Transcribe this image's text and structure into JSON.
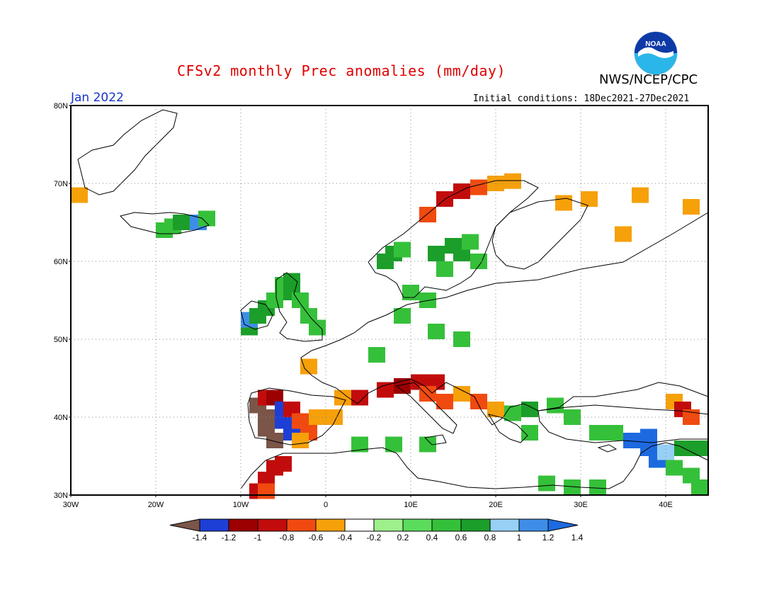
{
  "header": {
    "title": "CFSv2 monthly Prec anomalies (mm/day)",
    "agency": "NWS/NCEP/CPC",
    "logo_text": "NOAA",
    "month": "Jan 2022",
    "initial_conditions": "Initial conditions: 18Dec2021-27Dec2021"
  },
  "map": {
    "lon_range": [
      -30,
      45
    ],
    "lat_range": [
      30,
      80
    ],
    "lat_labels": [
      "80N",
      "70N",
      "60N",
      "50N",
      "40N",
      "30N"
    ],
    "lon_labels": [
      "30W",
      "20W",
      "10W",
      "0",
      "10E",
      "20E",
      "30E",
      "40E"
    ]
  },
  "colorbar": {
    "labels": [
      "-1.4",
      "-1.2",
      "-1",
      "-0.8",
      "-0.6",
      "-0.4",
      "-0.2",
      "0.2",
      "0.4",
      "0.6",
      "0.8",
      "1",
      "1.2",
      "1.4"
    ],
    "colors": [
      "#7a5548",
      "#1d3fd6",
      "#9c0000",
      "#c20c0c",
      "#f04a10",
      "#f6a00a",
      "#ffffff",
      "#9ef08c",
      "#5bdc5c",
      "#35c03a",
      "#1c9e2a",
      "#97d0f5",
      "#3e8ee8",
      "#1d6ae0"
    ]
  },
  "anomaly_cells": [
    {
      "lon": -30,
      "lat": 68.5,
      "v": -0.5
    },
    {
      "lon": -20,
      "lat": 64,
      "v": 0.5
    },
    {
      "lon": -19,
      "lat": 64.5,
      "v": 0.5
    },
    {
      "lon": -18,
      "lat": 65,
      "v": 0.7
    },
    {
      "lon": -17,
      "lat": 65,
      "v": 0.7
    },
    {
      "lon": -16,
      "lat": 65,
      "v": 1.1
    },
    {
      "lon": -15,
      "lat": 65.5,
      "v": 0.5
    },
    {
      "lon": -10,
      "lat": 51.5,
      "v": 0.7
    },
    {
      "lon": -10,
      "lat": 52.5,
      "v": 1.1
    },
    {
      "lon": -9,
      "lat": 53,
      "v": 0.7
    },
    {
      "lon": -8,
      "lat": 54,
      "v": 0.7
    },
    {
      "lon": -7,
      "lat": 55,
      "v": 0.5
    },
    {
      "lon": -6,
      "lat": 57,
      "v": 0.5
    },
    {
      "lon": -5,
      "lat": 57.5,
      "v": 0.7
    },
    {
      "lon": -5,
      "lat": 56,
      "v": 0.7
    },
    {
      "lon": -4,
      "lat": 55,
      "v": 0.5
    },
    {
      "lon": -3,
      "lat": 53,
      "v": 0.5
    },
    {
      "lon": -2,
      "lat": 51.5,
      "v": 0.5
    },
    {
      "lon": 6,
      "lat": 60,
      "v": 0.7
    },
    {
      "lon": 7,
      "lat": 61,
      "v": 0.7
    },
    {
      "lon": 8,
      "lat": 61.5,
      "v": 0.5
    },
    {
      "lon": 12,
      "lat": 61,
      "v": 0.7
    },
    {
      "lon": 14,
      "lat": 62,
      "v": 0.7
    },
    {
      "lon": 15,
      "lat": 61,
      "v": 0.7
    },
    {
      "lon": 16,
      "lat": 62.5,
      "v": 0.5
    },
    {
      "lon": 17,
      "lat": 60,
      "v": 0.5
    },
    {
      "lon": 13,
      "lat": 59,
      "v": 0.5
    },
    {
      "lon": 9,
      "lat": 56,
      "v": 0.5
    },
    {
      "lon": 11,
      "lat": 55,
      "v": 0.5
    },
    {
      "lon": 8,
      "lat": 53,
      "v": 0.5
    },
    {
      "lon": 12,
      "lat": 51,
      "v": 0.5
    },
    {
      "lon": 15,
      "lat": 50,
      "v": 0.5
    },
    {
      "lon": 5,
      "lat": 48,
      "v": 0.5
    },
    {
      "lon": 13,
      "lat": 68,
      "v": -0.8
    },
    {
      "lon": 15,
      "lat": 69,
      "v": -0.9
    },
    {
      "lon": 17,
      "lat": 69.5,
      "v": -0.6
    },
    {
      "lon": 19,
      "lat": 70,
      "v": -0.5
    },
    {
      "lon": 21,
      "lat": 70.3,
      "v": -0.5
    },
    {
      "lon": 11,
      "lat": 66,
      "v": -0.6
    },
    {
      "lon": 27,
      "lat": 67.5,
      "v": -0.5
    },
    {
      "lon": 30,
      "lat": 68,
      "v": -0.5
    },
    {
      "lon": 36,
      "lat": 68.5,
      "v": -0.5
    },
    {
      "lon": 42,
      "lat": 67,
      "v": -0.5
    },
    {
      "lon": 34,
      "lat": 63.5,
      "v": -0.5
    },
    {
      "lon": -3,
      "lat": 46.5,
      "v": -0.5
    },
    {
      "lon": 1,
      "lat": 42.5,
      "v": -0.5
    },
    {
      "lon": 3,
      "lat": 42.5,
      "v": -0.8
    },
    {
      "lon": 6,
      "lat": 43.5,
      "v": -0.9
    },
    {
      "lon": 8,
      "lat": 44,
      "v": -1.0
    },
    {
      "lon": 10,
      "lat": 44.5,
      "v": -0.9
    },
    {
      "lon": 12,
      "lat": 44.5,
      "v": -0.9
    },
    {
      "lon": 11,
      "lat": 43,
      "v": -0.6
    },
    {
      "lon": 13,
      "lat": 42,
      "v": -0.6
    },
    {
      "lon": 15,
      "lat": 43,
      "v": -0.5
    },
    {
      "lon": 17,
      "lat": 42,
      "v": -0.6
    },
    {
      "lon": 19,
      "lat": 41,
      "v": -0.5
    },
    {
      "lon": -9,
      "lat": 41.5,
      "v": -1.5
    },
    {
      "lon": -8,
      "lat": 40,
      "v": -1.5
    },
    {
      "lon": -8,
      "lat": 38.5,
      "v": -1.5
    },
    {
      "lon": -7,
      "lat": 37,
      "v": -1.5
    },
    {
      "lon": -8,
      "lat": 42.5,
      "v": -0.9
    },
    {
      "lon": -7,
      "lat": 42.5,
      "v": -1.0
    },
    {
      "lon": -6,
      "lat": 41,
      "v": -1.2
    },
    {
      "lon": -6,
      "lat": 39.5,
      "v": -1.2
    },
    {
      "lon": -5,
      "lat": 38,
      "v": -1.2
    },
    {
      "lon": -5,
      "lat": 41,
      "v": -0.9
    },
    {
      "lon": -4,
      "lat": 39.5,
      "v": -0.7
    },
    {
      "lon": -3,
      "lat": 38,
      "v": -0.6
    },
    {
      "lon": -2,
      "lat": 40,
      "v": -0.5
    },
    {
      "lon": 0,
      "lat": 40,
      "v": -0.5
    },
    {
      "lon": -4,
      "lat": 37,
      "v": -0.5
    },
    {
      "lon": -6,
      "lat": 34,
      "v": -0.9
    },
    {
      "lon": -7,
      "lat": 33.5,
      "v": -0.9
    },
    {
      "lon": -8,
      "lat": 32,
      "v": -0.9
    },
    {
      "lon": -9,
      "lat": 30.5,
      "v": -0.9
    },
    {
      "lon": -8,
      "lat": 30.5,
      "v": -0.6
    },
    {
      "lon": 21,
      "lat": 40.5,
      "v": 0.5
    },
    {
      "lon": 23,
      "lat": 41,
      "v": 0.7
    },
    {
      "lon": 26,
      "lat": 41.5,
      "v": 0.6
    },
    {
      "lon": 28,
      "lat": 40,
      "v": 0.5
    },
    {
      "lon": 23,
      "lat": 38,
      "v": 0.6
    },
    {
      "lon": 35,
      "lat": 37,
      "v": 1.3
    },
    {
      "lon": 37,
      "lat": 37.5,
      "v": 1.3
    },
    {
      "lon": 37,
      "lat": 36,
      "v": 1.4
    },
    {
      "lon": 38,
      "lat": 34.5,
      "v": 1.3
    },
    {
      "lon": 39,
      "lat": 35.5,
      "v": 0.9
    },
    {
      "lon": 41,
      "lat": 36,
      "v": 0.8
    },
    {
      "lon": 43,
      "lat": 36,
      "v": 0.8
    },
    {
      "lon": 40,
      "lat": 33.5,
      "v": 0.6
    },
    {
      "lon": 42,
      "lat": 32.5,
      "v": 0.5
    },
    {
      "lon": 43,
      "lat": 31,
      "v": 0.5
    },
    {
      "lon": 33,
      "lat": 38,
      "v": 0.6
    },
    {
      "lon": 31,
      "lat": 38,
      "v": 0.5
    },
    {
      "lon": 40,
      "lat": 42,
      "v": -0.5
    },
    {
      "lon": 41,
      "lat": 41,
      "v": -0.8
    },
    {
      "lon": 42,
      "lat": 40,
      "v": -0.6
    },
    {
      "lon": 25,
      "lat": 31.5,
      "v": 0.5
    },
    {
      "lon": 28,
      "lat": 31,
      "v": 0.5
    },
    {
      "lon": 31,
      "lat": 31,
      "v": 0.5
    },
    {
      "lon": 11,
      "lat": 36.5,
      "v": 0.5
    },
    {
      "lon": 7,
      "lat": 36.5,
      "v": 0.5
    },
    {
      "lon": 3,
      "lat": 36.5,
      "v": 0.5
    }
  ]
}
